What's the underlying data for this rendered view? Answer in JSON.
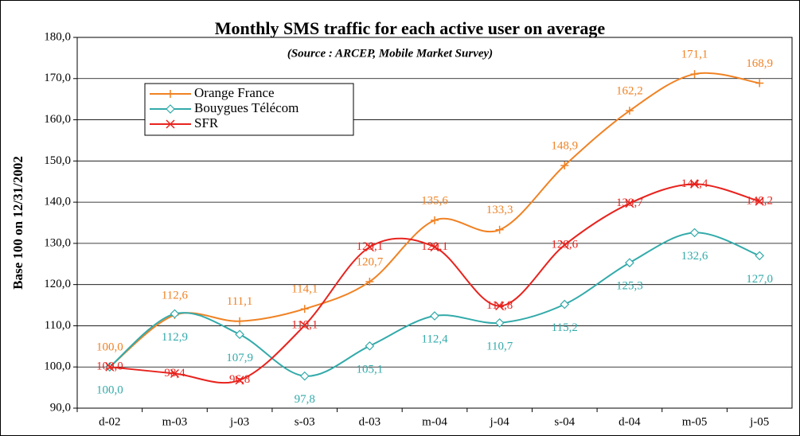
{
  "chart_data": {
    "type": "line",
    "title": "Monthly SMS traffic for each active user on average",
    "subtitle": "(Source : ARCEP, Mobile Market Survey)",
    "y_label": "Base 100 on 12/31/2002",
    "categories": [
      "d-02",
      "m-03",
      "j-03",
      "s-03",
      "d-03",
      "m-04",
      "j-04",
      "s-04",
      "d-04",
      "m-05",
      "j-05"
    ],
    "series": [
      {
        "name": "Orange France",
        "color": "#f08224",
        "marker": "plus",
        "values": [
          100.0,
          112.6,
          111.1,
          114.1,
          120.7,
          135.6,
          133.3,
          148.9,
          162.2,
          171.1,
          168.9
        ],
        "value_labels": [
          "100,0",
          "112,6",
          "111,1",
          "114,1",
          "120,7",
          "135,6",
          "133,3",
          "148,9",
          "162,2",
          "171,1",
          "168,9"
        ]
      },
      {
        "name": "Bouygues Télécom",
        "color": "#33aaaa",
        "marker": "diamond",
        "values": [
          100.0,
          112.9,
          107.9,
          97.8,
          105.1,
          112.4,
          110.7,
          115.2,
          125.3,
          132.6,
          127.0
        ],
        "value_labels": [
          "100,0",
          "112,9",
          "107,9",
          "97,8",
          "105,1",
          "112,4",
          "110,7",
          "115,2",
          "125,3",
          "132,6",
          "127,0"
        ]
      },
      {
        "name": "SFR",
        "color": "#e8231e",
        "marker": "x",
        "values": [
          100.0,
          98.4,
          96.8,
          110.1,
          129.1,
          129.1,
          114.8,
          129.6,
          139.7,
          144.4,
          140.2
        ],
        "value_labels": [
          "100,0",
          "98,4",
          "96,8",
          "110,1",
          "129,1",
          "129,1",
          "114,8",
          "129,6",
          "139,7",
          "144,4",
          "140,2"
        ]
      }
    ],
    "ylim": [
      90,
      180
    ],
    "yticks": [
      {
        "value": 90,
        "label": "90,0"
      },
      {
        "value": 100,
        "label": "100,0"
      },
      {
        "value": 110,
        "label": "110,0"
      },
      {
        "value": 120,
        "label": "120,0"
      },
      {
        "value": 130,
        "label": "130,0"
      },
      {
        "value": 140,
        "label": "140,0"
      },
      {
        "value": 150,
        "label": "150,0"
      },
      {
        "value": 160,
        "label": "160,0"
      },
      {
        "value": 170,
        "label": "170,0"
      },
      {
        "value": 180,
        "label": "180,0"
      }
    ],
    "grid": true
  }
}
